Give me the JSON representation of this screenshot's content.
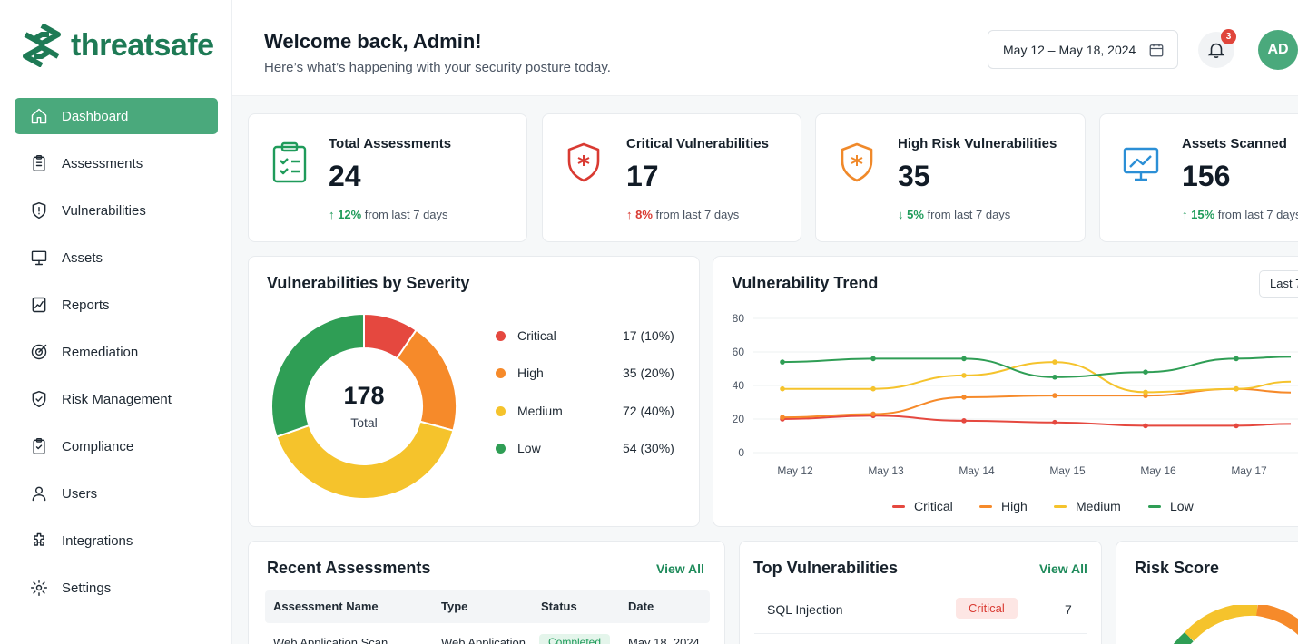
{
  "brand": {
    "name": "threatsafe",
    "color": "#1e7a55"
  },
  "nav": {
    "items": [
      {
        "label": "Dashboard",
        "icon": "home-icon",
        "active": true
      },
      {
        "label": "Assessments",
        "icon": "clipboard-icon"
      },
      {
        "label": "Vulnerabilities",
        "icon": "shield-icon"
      },
      {
        "label": "Assets",
        "icon": "monitor-icon"
      },
      {
        "label": "Reports",
        "icon": "chart-icon"
      },
      {
        "label": "Remediation",
        "icon": "target-icon"
      },
      {
        "label": "Risk Management",
        "icon": "shield-check-icon"
      },
      {
        "label": "Compliance",
        "icon": "clipboard-check-icon"
      },
      {
        "label": "Users",
        "icon": "user-icon"
      },
      {
        "label": "Integrations",
        "icon": "puzzle-icon"
      },
      {
        "label": "Settings",
        "icon": "gear-icon"
      }
    ]
  },
  "header": {
    "title": "Welcome back, Admin!",
    "subtitle": "Here’s what’s happening with your security posture today.",
    "date_range": "May 12 – May 18, 2024",
    "notifications": "3",
    "avatar": "AD"
  },
  "stats": [
    {
      "label": "Total Assessments",
      "value": "24",
      "change": "12%",
      "direction": "up",
      "suffix": "from last 7 days",
      "color": "#1f9b5a"
    },
    {
      "label": "Critical Vulnerabilities",
      "value": "17",
      "change": "8%",
      "direction": "up",
      "suffix": "from last 7 days",
      "color": "#d93a32"
    },
    {
      "label": "High Risk Vulnerabilities",
      "value": "35",
      "change": "5%",
      "direction": "down",
      "suffix": "from last 7 days",
      "color": "#1f9b5a"
    },
    {
      "label": "Assets Scanned",
      "value": "156",
      "change": "15%",
      "direction": "up",
      "suffix": "from last 7 days",
      "color": "#1f9b5a"
    }
  ],
  "severity": {
    "title": "Vulnerabilities by Severity",
    "total": "178",
    "total_label": "Total",
    "chart_data": {
      "type": "pie",
      "labels": [
        "Critical",
        "High",
        "Medium",
        "Low"
      ],
      "values": [
        17,
        35,
        72,
        54
      ],
      "display": [
        "17 (10%)",
        "35 (20%)",
        "72 (40%)",
        "54 (30%)"
      ],
      "colors": [
        "#e5483f",
        "#f68a2a",
        "#f5c32c",
        "#2f9e55"
      ]
    }
  },
  "trend": {
    "title": "Vulnerability Trend",
    "range_button": "Last 7",
    "chart_data": {
      "type": "line",
      "x": [
        "May 12",
        "May 13",
        "May 14",
        "May 15",
        "May 16",
        "May 17"
      ],
      "yticks": [
        "0",
        "20",
        "40",
        "60",
        "80"
      ],
      "ylim": [
        0,
        80
      ],
      "series": [
        {
          "name": "Critical",
          "color": "#e5483f",
          "values": [
            20,
            22,
            19,
            18,
            16,
            16
          ]
        },
        {
          "name": "High",
          "color": "#f68a2a",
          "values": [
            21,
            23,
            33,
            34,
            34,
            38
          ]
        },
        {
          "name": "Medium",
          "color": "#f5c32c",
          "values": [
            38,
            38,
            46,
            54,
            36,
            38
          ]
        },
        {
          "name": "Low",
          "color": "#2f9e55",
          "values": [
            54,
            56,
            56,
            45,
            48,
            56
          ]
        }
      ]
    }
  },
  "recent": {
    "title": "Recent Assessments",
    "view_all": "View All",
    "columns": [
      "Assessment Name",
      "Type",
      "Status",
      "Date"
    ],
    "rows": [
      {
        "name": "Web Application Scan",
        "type": "Web Application",
        "status": "Completed",
        "date": "May 18, 2024"
      }
    ]
  },
  "top_vulns": {
    "title": "Top Vulnerabilities",
    "view_all": "View All",
    "rows": [
      {
        "name": "SQL Injection",
        "severity": "Critical",
        "count": "7"
      }
    ]
  },
  "risk": {
    "title": "Risk Score"
  }
}
